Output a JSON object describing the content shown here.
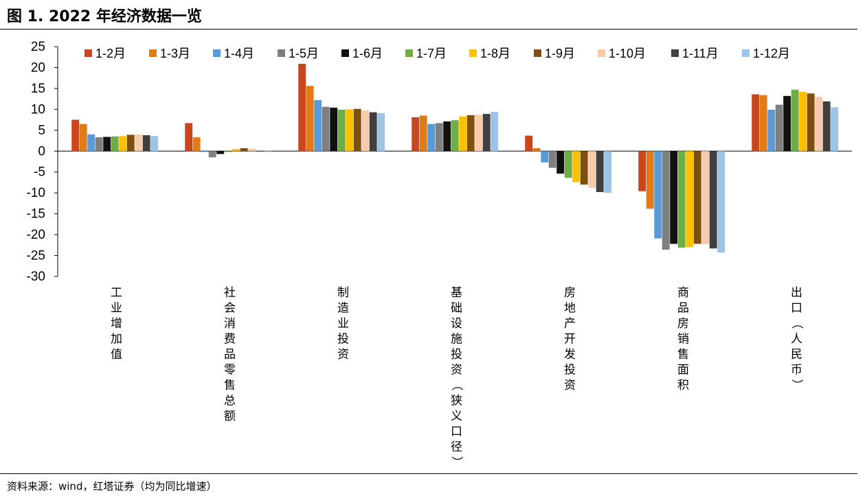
{
  "title": "图 1. 2022 年经济数据一览",
  "source": "资料来源：wind，红塔证券（均为同比增速）",
  "chart_data": {
    "type": "bar",
    "ylim": [
      -30,
      25
    ],
    "yticks": [
      25,
      20,
      15,
      10,
      5,
      0,
      -5,
      -10,
      -15,
      -20,
      -25,
      -30
    ],
    "legend_position": "top",
    "categories": [
      "工业增加值",
      "社会消费品零售总额",
      "制造业投资",
      "基础设施投资（狭义口径）",
      "房地产开发投资",
      "商品房销售面积",
      "出口（人民币）"
    ],
    "series": [
      {
        "name": "1-2月",
        "color": "#C9461F",
        "values": [
          7.5,
          6.7,
          20.9,
          8.1,
          3.7,
          -9.6,
          13.6
        ]
      },
      {
        "name": "1-3月",
        "color": "#E07B1A",
        "values": [
          6.5,
          3.3,
          15.6,
          8.5,
          0.7,
          -13.8,
          13.4
        ]
      },
      {
        "name": "1-4月",
        "color": "#5B9BD5",
        "values": [
          4.0,
          -0.2,
          12.2,
          6.5,
          -2.7,
          -20.9,
          9.9
        ]
      },
      {
        "name": "1-5月",
        "color": "#7F7F7F",
        "values": [
          3.3,
          -1.5,
          10.6,
          6.7,
          -4.0,
          -23.6,
          11.1
        ]
      },
      {
        "name": "1-6月",
        "color": "#111111",
        "values": [
          3.4,
          -0.7,
          10.4,
          7.1,
          -5.4,
          -22.2,
          13.2
        ]
      },
      {
        "name": "1-7月",
        "color": "#70AD47",
        "values": [
          3.5,
          -0.2,
          9.9,
          7.4,
          -6.4,
          -23.1,
          14.7
        ]
      },
      {
        "name": "1-8月",
        "color": "#FFC000",
        "values": [
          3.6,
          0.5,
          10.0,
          8.3,
          -7.4,
          -23.0,
          14.2
        ]
      },
      {
        "name": "1-9月",
        "color": "#7F4F10",
        "values": [
          3.9,
          0.7,
          10.1,
          8.6,
          -8.0,
          -22.2,
          13.8
        ]
      },
      {
        "name": "1-10月",
        "color": "#F8CBAD",
        "values": [
          4.0,
          0.6,
          9.7,
          8.7,
          -8.8,
          -22.3,
          13.0
        ]
      },
      {
        "name": "1-11月",
        "color": "#404040",
        "values": [
          3.8,
          -0.1,
          9.3,
          8.9,
          -9.8,
          -23.3,
          11.9
        ]
      },
      {
        "name": "1-12月",
        "color": "#9DC3E6",
        "values": [
          3.6,
          -0.2,
          9.1,
          9.4,
          -10.0,
          -24.3,
          10.5
        ]
      }
    ]
  }
}
